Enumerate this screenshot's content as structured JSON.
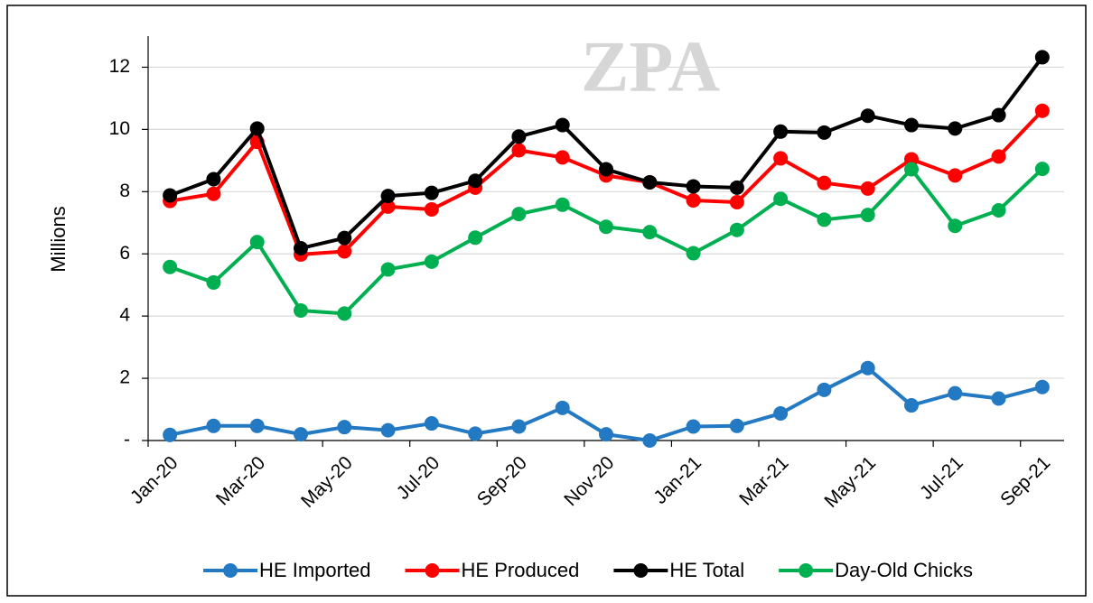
{
  "chart_data": {
    "type": "line",
    "watermark": "ZPA",
    "y_label": "Millions",
    "categories": [
      "Jan-20",
      null,
      "Mar-20",
      null,
      "May-20",
      null,
      "Jul-20",
      null,
      "Sep-20",
      null,
      "Nov-20",
      null,
      "Jan-21",
      null,
      "Mar-21",
      null,
      "May-21",
      null,
      "Jul-21",
      null,
      "Sep-21"
    ],
    "series": [
      {
        "name": "HE Imported",
        "color": "#2479c3",
        "values": [
          0.18,
          0.47,
          0.47,
          0.2,
          0.43,
          0.33,
          0.55,
          0.22,
          0.45,
          1.05,
          0.2,
          0.0,
          0.45,
          0.47,
          0.87,
          1.63,
          2.33,
          1.13,
          1.52,
          1.35,
          1.72
        ]
      },
      {
        "name": "HE Produced",
        "color": "#ff0000",
        "values": [
          7.7,
          7.93,
          9.6,
          5.98,
          6.08,
          7.52,
          7.43,
          8.13,
          9.33,
          9.1,
          8.52,
          8.3,
          7.72,
          7.66,
          9.07,
          8.28,
          8.1,
          9.04,
          8.52,
          9.13,
          10.6
        ]
      },
      {
        "name": "HE Total",
        "color": "#000000",
        "values": [
          7.88,
          8.4,
          10.03,
          6.18,
          6.51,
          7.86,
          7.96,
          8.35,
          9.77,
          10.14,
          8.72,
          8.3,
          8.17,
          8.13,
          9.93,
          9.9,
          10.44,
          10.14,
          10.03,
          10.46,
          12.32
        ]
      },
      {
        "name": "Day-Old Chicks",
        "color": "#00b050",
        "values": [
          5.58,
          5.08,
          6.38,
          4.18,
          4.08,
          5.5,
          5.75,
          6.52,
          7.28,
          7.58,
          6.87,
          6.7,
          6.02,
          6.77,
          7.77,
          7.1,
          7.25,
          8.72,
          6.9,
          7.4,
          8.73
        ]
      }
    ],
    "ylim": [
      0,
      13
    ],
    "yticks": [
      {
        "value": 0,
        "label": "-"
      },
      2,
      4,
      6,
      8,
      10,
      12
    ],
    "grid": true,
    "legend": "bottom"
  }
}
